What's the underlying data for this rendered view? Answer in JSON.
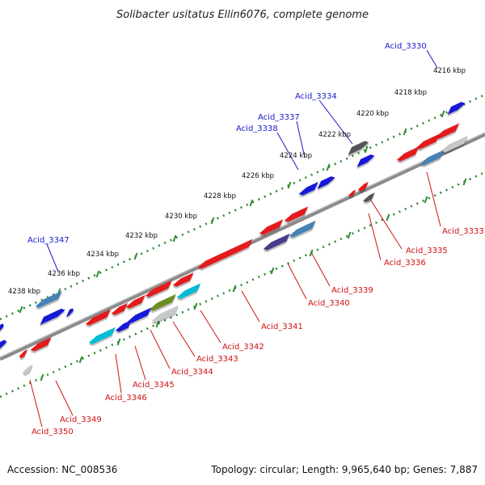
{
  "title": "Solibacter usitatus Ellin6076, complete genome",
  "footer": {
    "accession": "Accession: NC_008536",
    "topology": "Topology: circular; Length: 9,965,640 bp; Genes: 7,887"
  },
  "colors": {
    "backbone": "#8a8a8a",
    "tick": "#2e8b2e",
    "plus_label": "#1a1acc",
    "minus_label": "#d01010",
    "red_gene": "#e41a1c",
    "blue_gene": "#1818d8",
    "steelblue_gene": "#4682b4",
    "cyan_gene": "#00bcd4",
    "olive_gene": "#6b8e23",
    "gray_gene": "#555555",
    "lightgray_gene": "#c8c8c8",
    "slateblue_gene": "#483d8b"
  },
  "kbp_labels": [
    "4216 kbp",
    "4218 kbp",
    "4220 kbp",
    "4222 kbp",
    "4224 kbp",
    "4226 kbp",
    "4228 kbp",
    "4230 kbp",
    "4232 kbp",
    "4234 kbp",
    "4236 kbp",
    "4238 kbp"
  ],
  "plus_labels": [
    "Acid_3330",
    "Acid_3334",
    "Acid_3337",
    "Acid_3338",
    "Acid_3347"
  ],
  "minus_labels": [
    "Acid_3333",
    "Acid_3335",
    "Acid_3336",
    "Acid_3339",
    "Acid_3340",
    "Acid_3341",
    "Acid_3342",
    "Acid_3343",
    "Acid_3344",
    "Acid_3345",
    "Acid_3346",
    "Acid_3349",
    "Acid_3350"
  ]
}
